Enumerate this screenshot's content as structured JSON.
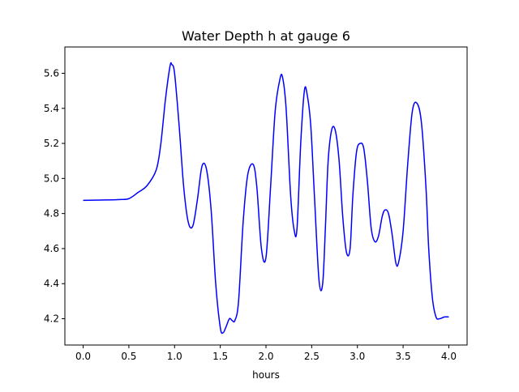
{
  "chart_data": {
    "type": "line",
    "title": "Water Depth h at gauge 6",
    "xlabel": "hours",
    "ylabel": "",
    "xlim": [
      -0.2,
      4.2
    ],
    "ylim": [
      4.05,
      5.75
    ],
    "xticks": [
      0.0,
      0.5,
      1.0,
      1.5,
      2.0,
      2.5,
      3.0,
      3.5,
      4.0
    ],
    "xtick_labels": [
      "0.0",
      "0.5",
      "1.0",
      "1.5",
      "2.0",
      "2.5",
      "3.0",
      "3.5",
      "4.0"
    ],
    "yticks": [
      4.2,
      4.4,
      4.6,
      4.8,
      5.0,
      5.2,
      5.4,
      5.6
    ],
    "ytick_labels": [
      "4.2",
      "4.4",
      "4.6",
      "4.8",
      "5.0",
      "5.2",
      "5.4",
      "5.6"
    ],
    "grid": false,
    "series": [
      {
        "color": "#0000ff",
        "x": [
          0.0,
          0.2,
          0.4,
          0.5,
          0.6,
          0.7,
          0.8,
          0.85,
          0.9,
          0.95,
          0.97,
          1.0,
          1.05,
          1.1,
          1.15,
          1.2,
          1.25,
          1.3,
          1.35,
          1.4,
          1.45,
          1.5,
          1.53,
          1.56,
          1.6,
          1.63,
          1.66,
          1.7,
          1.75,
          1.8,
          1.86,
          1.9,
          1.95,
          2.0,
          2.05,
          2.1,
          2.15,
          2.18,
          2.22,
          2.27,
          2.31,
          2.34,
          2.38,
          2.42,
          2.45,
          2.49,
          2.53,
          2.58,
          2.62,
          2.65,
          2.68,
          2.72,
          2.76,
          2.8,
          2.84,
          2.88,
          2.92,
          2.95,
          2.99,
          3.03,
          3.07,
          3.11,
          3.15,
          3.19,
          3.23,
          3.27,
          3.3,
          3.34,
          3.38,
          3.42,
          3.45,
          3.5,
          3.55,
          3.6,
          3.65,
          3.7,
          3.75,
          3.78,
          3.82,
          3.86,
          3.9,
          3.95,
          4.0
        ],
        "y": [
          4.875,
          4.877,
          4.88,
          4.885,
          4.92,
          4.96,
          5.05,
          5.2,
          5.45,
          5.64,
          5.65,
          5.6,
          5.3,
          4.95,
          4.75,
          4.73,
          4.88,
          5.07,
          5.05,
          4.82,
          4.4,
          4.15,
          4.12,
          4.15,
          4.2,
          4.19,
          4.19,
          4.3,
          4.75,
          5.02,
          5.08,
          4.95,
          4.6,
          4.55,
          4.95,
          5.38,
          5.56,
          5.58,
          5.4,
          4.9,
          4.7,
          4.72,
          5.2,
          5.5,
          5.48,
          5.3,
          4.9,
          4.42,
          4.4,
          4.72,
          5.1,
          5.28,
          5.27,
          5.1,
          4.78,
          4.58,
          4.6,
          4.9,
          5.15,
          5.2,
          5.17,
          4.98,
          4.72,
          4.64,
          4.67,
          4.78,
          4.82,
          4.8,
          4.68,
          4.52,
          4.52,
          4.7,
          5.08,
          5.38,
          5.43,
          5.32,
          4.95,
          4.6,
          4.32,
          4.21,
          4.2,
          4.21,
          4.21
        ]
      }
    ]
  }
}
